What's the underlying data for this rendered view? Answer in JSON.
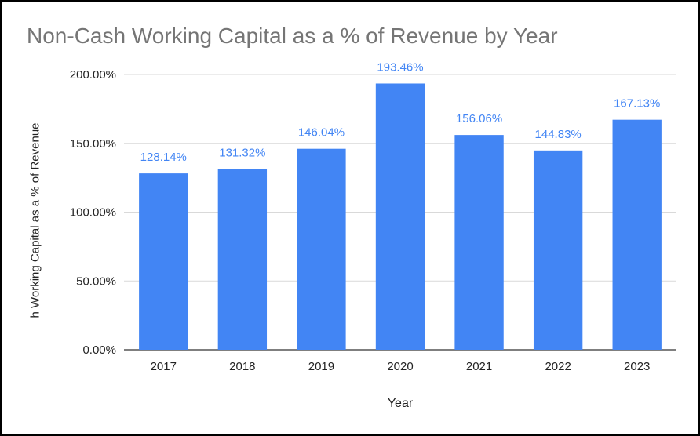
{
  "chart_data": {
    "type": "bar",
    "title": "Non-Cash Working Capital as a % of Revenue by Year",
    "xlabel": "Year",
    "ylabel": "h Working Capital as a % of Revenue",
    "categories": [
      "2017",
      "2018",
      "2019",
      "2020",
      "2021",
      "2022",
      "2023"
    ],
    "values": [
      128.14,
      131.32,
      146.04,
      193.46,
      156.06,
      144.83,
      167.13
    ],
    "data_labels": [
      "128.14%",
      "131.32%",
      "146.04%",
      "193.46%",
      "156.06%",
      "144.83%",
      "167.13%"
    ],
    "ylim": [
      0,
      200
    ],
    "yticks": [
      0,
      50,
      100,
      150,
      200
    ],
    "ytick_labels": [
      "0.00%",
      "50.00%",
      "100.00%",
      "150.00%",
      "200.00%"
    ],
    "grid": true,
    "legend": "none",
    "colors": {
      "bar": "#4285f4",
      "data_label": "#4285f4",
      "gridline": "#d9d9d9",
      "axis_line": "#333333"
    }
  }
}
